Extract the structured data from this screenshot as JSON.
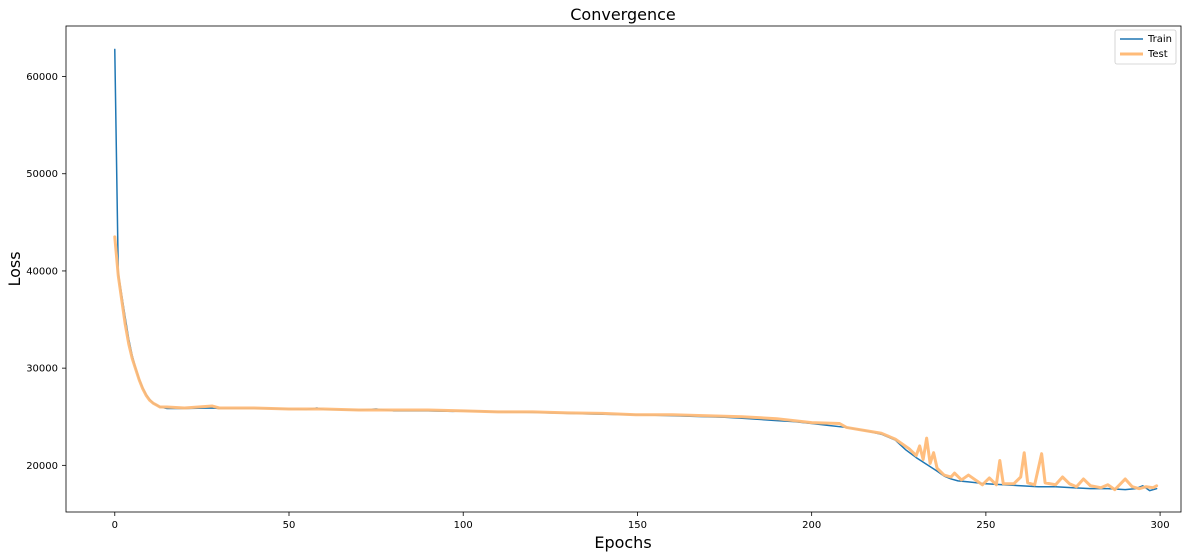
{
  "chart_data": {
    "type": "line",
    "title": "Convergence",
    "xlabel": "Epochs",
    "ylabel": "Loss",
    "xlim": [
      -14,
      306
    ],
    "ylim": [
      15200,
      65200
    ],
    "x_ticks": [
      0,
      50,
      100,
      150,
      200,
      250,
      300
    ],
    "y_ticks": [
      20000,
      30000,
      40000,
      50000,
      60000
    ],
    "grid": false,
    "legend_position": "top-right",
    "series": [
      {
        "name": "Train",
        "color": "#1f77b4",
        "points": [
          [
            0,
            62800
          ],
          [
            1,
            39800
          ],
          [
            2,
            37500
          ],
          [
            3,
            35200
          ],
          [
            4,
            33000
          ],
          [
            5,
            31300
          ],
          [
            6,
            30000
          ],
          [
            7,
            28900
          ],
          [
            8,
            28000
          ],
          [
            9,
            27300
          ],
          [
            10,
            26800
          ],
          [
            11,
            26400
          ],
          [
            12,
            26200
          ],
          [
            13,
            26000
          ],
          [
            15,
            25850
          ],
          [
            20,
            25850
          ],
          [
            28,
            25900
          ],
          [
            30,
            25850
          ],
          [
            40,
            25850
          ],
          [
            45,
            25850
          ],
          [
            50,
            25800
          ],
          [
            55,
            25750
          ],
          [
            58,
            25900
          ],
          [
            60,
            25750
          ],
          [
            70,
            25700
          ],
          [
            75,
            25800
          ],
          [
            80,
            25600
          ],
          [
            90,
            25600
          ],
          [
            97,
            25550
          ],
          [
            100,
            25600
          ],
          [
            105,
            25550
          ],
          [
            110,
            25500
          ],
          [
            120,
            25450
          ],
          [
            130,
            25350
          ],
          [
            140,
            25250
          ],
          [
            150,
            25200
          ],
          [
            160,
            25100
          ],
          [
            170,
            25000
          ],
          [
            175,
            24950
          ],
          [
            180,
            24850
          ],
          [
            190,
            24600
          ],
          [
            195,
            24500
          ],
          [
            200,
            24300
          ],
          [
            205,
            24100
          ],
          [
            210,
            23900
          ],
          [
            215,
            23600
          ],
          [
            220,
            23200
          ],
          [
            224,
            22600
          ],
          [
            227,
            21600
          ],
          [
            230,
            20800
          ],
          [
            233,
            20100
          ],
          [
            236,
            19400
          ],
          [
            238,
            18900
          ],
          [
            240,
            18600
          ],
          [
            242,
            18400
          ],
          [
            245,
            18300
          ],
          [
            250,
            18100
          ],
          [
            255,
            18000
          ],
          [
            260,
            17900
          ],
          [
            265,
            17800
          ],
          [
            270,
            17800
          ],
          [
            275,
            17700
          ],
          [
            280,
            17600
          ],
          [
            285,
            17600
          ],
          [
            290,
            17500
          ],
          [
            293,
            17600
          ],
          [
            295,
            17900
          ],
          [
            297,
            17400
          ],
          [
            299,
            17600
          ]
        ]
      },
      {
        "name": "Test",
        "color": "#ffbb78",
        "points": [
          [
            0,
            43500
          ],
          [
            1,
            39500
          ],
          [
            2,
            37000
          ],
          [
            3,
            34500
          ],
          [
            4,
            32500
          ],
          [
            5,
            31000
          ],
          [
            6,
            29900
          ],
          [
            7,
            28800
          ],
          [
            8,
            27900
          ],
          [
            9,
            27200
          ],
          [
            10,
            26700
          ],
          [
            11,
            26400
          ],
          [
            12,
            26200
          ],
          [
            13,
            26000
          ],
          [
            15,
            26000
          ],
          [
            20,
            25900
          ],
          [
            28,
            26100
          ],
          [
            30,
            25900
          ],
          [
            40,
            25900
          ],
          [
            50,
            25800
          ],
          [
            60,
            25800
          ],
          [
            70,
            25700
          ],
          [
            80,
            25700
          ],
          [
            90,
            25700
          ],
          [
            100,
            25600
          ],
          [
            110,
            25500
          ],
          [
            120,
            25500
          ],
          [
            130,
            25400
          ],
          [
            140,
            25350
          ],
          [
            150,
            25200
          ],
          [
            160,
            25200
          ],
          [
            170,
            25100
          ],
          [
            180,
            25000
          ],
          [
            190,
            24800
          ],
          [
            200,
            24400
          ],
          [
            208,
            24300
          ],
          [
            210,
            23900
          ],
          [
            215,
            23600
          ],
          [
            220,
            23300
          ],
          [
            224,
            22700
          ],
          [
            228,
            21700
          ],
          [
            230,
            21000
          ],
          [
            231,
            22000
          ],
          [
            232,
            20600
          ],
          [
            233,
            22800
          ],
          [
            234,
            20200
          ],
          [
            235,
            21300
          ],
          [
            236,
            19700
          ],
          [
            238,
            19000
          ],
          [
            240,
            18800
          ],
          [
            241,
            19200
          ],
          [
            243,
            18500
          ],
          [
            245,
            19000
          ],
          [
            247,
            18500
          ],
          [
            249,
            18000
          ],
          [
            251,
            18700
          ],
          [
            253,
            18000
          ],
          [
            254,
            20500
          ],
          [
            255,
            18100
          ],
          [
            258,
            18100
          ],
          [
            260,
            18800
          ],
          [
            261,
            21300
          ],
          [
            262,
            18200
          ],
          [
            264,
            18000
          ],
          [
            266,
            21200
          ],
          [
            267,
            18200
          ],
          [
            270,
            18000
          ],
          [
            272,
            18800
          ],
          [
            274,
            18100
          ],
          [
            276,
            17800
          ],
          [
            278,
            18600
          ],
          [
            280,
            17900
          ],
          [
            283,
            17700
          ],
          [
            285,
            18000
          ],
          [
            287,
            17500
          ],
          [
            290,
            18600
          ],
          [
            292,
            17800
          ],
          [
            294,
            17600
          ],
          [
            296,
            17800
          ],
          [
            298,
            17700
          ],
          [
            299,
            17900
          ]
        ]
      }
    ]
  }
}
